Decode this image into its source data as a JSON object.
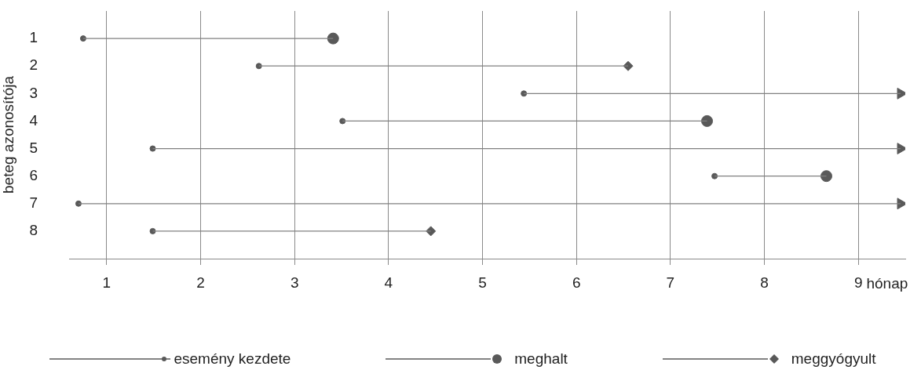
{
  "chart_data": {
    "type": "line",
    "xlabel": "hónap",
    "ylabel": "beteg azonosítója",
    "xlim": [
      0.6,
      9.5
    ],
    "xticks": [
      1,
      2,
      3,
      4,
      5,
      6,
      7,
      8,
      9
    ],
    "ylim": [
      9,
      0
    ],
    "yticks": [
      1,
      2,
      3,
      4,
      5,
      6,
      7,
      8
    ],
    "grid": "x",
    "legend": "bottom",
    "series": [
      {
        "type": "line",
        "marker": "none",
        "color": "#808080",
        "x": [
          0.75,
          3.41
        ],
        "values": [
          1,
          1
        ]
      },
      {
        "type": "line",
        "marker": "none",
        "color": "#808080",
        "x": [
          2.62,
          6.55
        ],
        "values": [
          2,
          2
        ]
      },
      {
        "type": "line",
        "marker": "none",
        "color": "#808080",
        "x": [
          5.44,
          9.45
        ],
        "values": [
          3,
          3
        ]
      },
      {
        "type": "line",
        "marker": "none",
        "color": "#808080",
        "x": [
          3.51,
          7.39
        ],
        "values": [
          4,
          4
        ]
      },
      {
        "type": "line",
        "marker": "none",
        "color": "#808080",
        "x": [
          1.49,
          9.45
        ],
        "values": [
          5,
          5
        ]
      },
      {
        "type": "line",
        "marker": "none",
        "color": "#808080",
        "x": [
          7.47,
          8.66
        ],
        "values": [
          6,
          6
        ]
      },
      {
        "type": "line",
        "marker": "none",
        "color": "#808080",
        "x": [
          0.7,
          9.45
        ],
        "values": [
          7,
          7
        ]
      },
      {
        "type": "line",
        "marker": "none",
        "color": "#808080",
        "x": [
          1.49,
          4.45
        ],
        "values": [
          8,
          8
        ]
      },
      {
        "type": "scatter",
        "name": "esemény kezdete",
        "marker": "circle",
        "color": "#595959",
        "x": [
          0.75,
          2.62,
          5.44,
          3.51,
          1.49,
          7.47,
          0.7,
          1.49
        ],
        "values": [
          1,
          2,
          3,
          4,
          5,
          6,
          7,
          8
        ]
      },
      {
        "type": "scatter",
        "name": "meghalt",
        "marker": "circle",
        "color": "#595959",
        "x": [
          3.41,
          7.39,
          8.66
        ],
        "values": [
          1,
          4,
          6
        ]
      },
      {
        "type": "scatter",
        "name": "meggyógyult",
        "marker": "diamond",
        "color": "#595959",
        "x": [
          6.55,
          4.45
        ],
        "values": [
          2,
          8
        ]
      },
      {
        "type": "scatter",
        "marker": "triangle",
        "color": "#595959",
        "x": [
          9.45,
          9.45,
          9.45
        ],
        "values": [
          3,
          5,
          7
        ]
      }
    ]
  }
}
